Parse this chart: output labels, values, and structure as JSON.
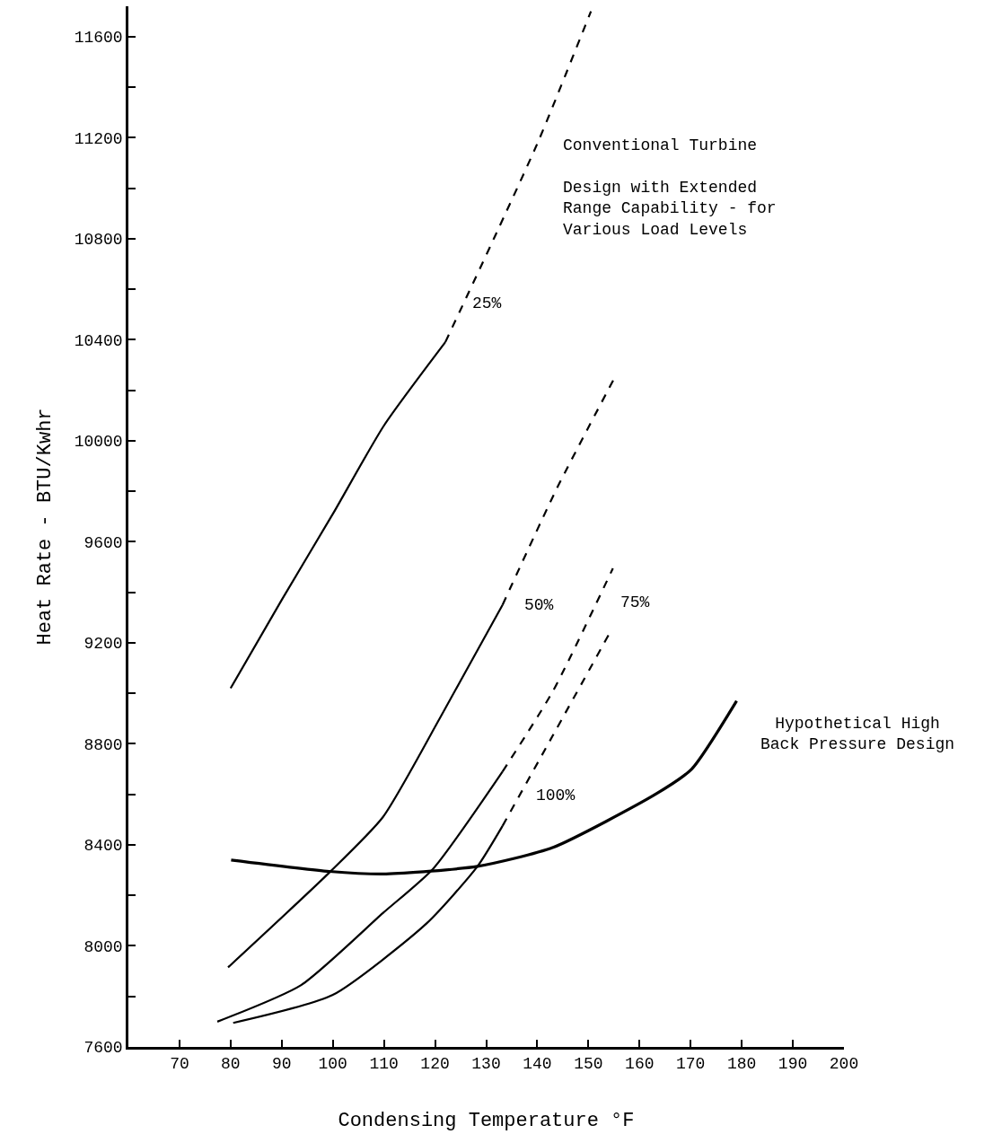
{
  "chart_data": {
    "type": "line",
    "title": "Conventional Turbine",
    "subtitle": "Design with Extended\nRange Capability - for\nVarious Load Levels",
    "xlabel": "Condensing Temperature °F",
    "ylabel": "Heat Rate - BTU/Kwhr",
    "xlim": [
      60,
      200
    ],
    "ylim": [
      7600,
      11720
    ],
    "xticks": [
      70,
      80,
      90,
      100,
      110,
      120,
      130,
      140,
      150,
      160,
      170,
      180,
      190,
      200
    ],
    "yticks": [
      7600,
      {
        "value": 7800,
        "label": null
      },
      8000,
      {
        "value": 8200,
        "label": null
      },
      8400,
      {
        "value": 8600,
        "label": null
      },
      8800,
      {
        "value": 9000,
        "label": null
      },
      9200,
      {
        "value": 9400,
        "label": null
      },
      9600,
      {
        "value": 9800,
        "label": null
      },
      10000,
      {
        "value": 10200,
        "label": null
      },
      10400,
      {
        "value": 10600,
        "label": null
      },
      10800,
      {
        "value": 11000,
        "label": null
      },
      11200,
      {
        "value": 11400,
        "label": null
      },
      11600
    ],
    "legend": false,
    "marker": "none",
    "series": [
      {
        "name": "25%",
        "color": "#000000",
        "line_style": "solid",
        "x": [
          80,
          90,
          100,
          110,
          122
        ],
        "values": [
          9020,
          9370,
          9710,
          10060,
          10390
        ]
      },
      {
        "color": "#000000",
        "line_style": "dashed",
        "x": [
          122,
          131.5,
          140.3,
          150.5
        ],
        "values": [
          10390,
          10800,
          11190,
          11700
        ]
      },
      {
        "name": "50%",
        "color": "#000000",
        "line_style": "solid",
        "x": [
          79.5,
          99.3,
          109.8,
          120.9,
          133.2
        ],
        "values": [
          7915,
          8290,
          8510,
          8900,
          9350
        ]
      },
      {
        "color": "#000000",
        "line_style": "dashed",
        "x": [
          133.2,
          143.8,
          155.4
        ],
        "values": [
          9350,
          9810,
          10260
        ]
      },
      {
        "color": "#000000",
        "line_style": "solid",
        "x": [
          77.4,
          93.8,
          109.8,
          119.6,
          133.2
        ],
        "values": [
          7700,
          7845,
          8130,
          8305,
          8690
        ]
      },
      {
        "name": "75%",
        "color": "#000000",
        "line_style": "dashed",
        "x": [
          133.2,
          143.1,
          154.8
        ],
        "values": [
          8690,
          9010,
          9495
        ]
      },
      {
        "color": "#000000",
        "line_style": "solid",
        "x": [
          80.5,
          99.9,
          118.4,
          128.3,
          133.2
        ],
        "values": [
          7695,
          7805,
          8090,
          8315,
          8475
        ]
      },
      {
        "name": "100%",
        "color": "#000000",
        "line_style": "dashed",
        "x": [
          133.2,
          143.1,
          154.2
        ],
        "values": [
          8475,
          8835,
          9240
        ]
      },
      {
        "name": "Hypothetical High\nBack Pressure Design",
        "color": "#000000",
        "line_style": "solid",
        "x": [
          80.1,
          99.3,
          110.4,
          128.3,
          143.1,
          163.1,
          170.2,
          179
        ],
        "values": [
          8340,
          8295,
          8285,
          8315,
          8390,
          8600,
          8700,
          8970
        ]
      }
    ]
  }
}
